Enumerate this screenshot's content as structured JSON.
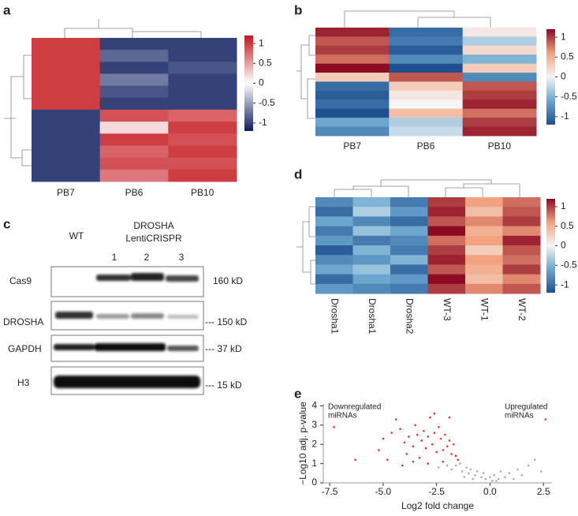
{
  "panels": [
    "a",
    "b",
    "c",
    "d",
    "e"
  ],
  "chart_data": [
    {
      "type": "heatmap",
      "columns": [
        "PB7",
        "PB6",
        "PB10"
      ],
      "values": [
        [
          1,
          -1,
          -1
        ],
        [
          1,
          -0.8,
          -1
        ],
        [
          1,
          -1,
          -0.9
        ],
        [
          1,
          -0.7,
          -1
        ],
        [
          1,
          -0.9,
          -1
        ],
        [
          1,
          -1,
          -1
        ],
        [
          -1,
          0.9,
          0.8
        ],
        [
          -1,
          0.2,
          1
        ],
        [
          -1,
          1,
          0.9
        ],
        [
          -1,
          0.8,
          1
        ],
        [
          -1,
          0.9,
          0.9
        ],
        [
          -1,
          0.7,
          1
        ]
      ],
      "colors": [
        "#0b1c5e",
        "#ffffff",
        "#c4161c"
      ],
      "clim": [
        -1.2,
        1.2
      ],
      "cticks": [
        1,
        0.5,
        0,
        -0.5,
        -1
      ]
    },
    {
      "type": "heatmap",
      "columns": [
        "PB7",
        "PB6",
        "PB10"
      ],
      "values": [
        [
          1.1,
          -1,
          0.1
        ],
        [
          0.9,
          -0.9,
          -0.3
        ],
        [
          1,
          -1.1,
          0.2
        ],
        [
          0.8,
          -0.8,
          -0.5
        ],
        [
          1.2,
          -1.2,
          0.3
        ],
        [
          0.3,
          0.9,
          -0.8
        ],
        [
          -1,
          0.3,
          0.9
        ],
        [
          -1.1,
          0.1,
          1
        ],
        [
          -1,
          0,
          1.1
        ],
        [
          -1.2,
          0.4,
          0.8
        ],
        [
          -0.6,
          -0.3,
          1
        ],
        [
          -0.8,
          -0.2,
          1.1
        ]
      ],
      "colors": [
        "#1f4f8f",
        "#6aa6ce",
        "#f5f5f5",
        "#f2a27f",
        "#8c0a22"
      ],
      "clim": [
        -1.2,
        1.2
      ],
      "cticks": [
        1,
        0.5,
        0,
        -0.5,
        -1
      ]
    },
    {
      "type": "heatmap",
      "columns": [
        "Drosha1",
        "Drosha1",
        "Drosha2",
        "WT-3",
        "WT-1",
        "WT-2"
      ],
      "values": [
        [
          -0.8,
          -0.5,
          -0.9,
          1.0,
          0.6,
          0.8
        ],
        [
          -1.0,
          -0.3,
          -0.7,
          1.1,
          0.4,
          0.9
        ],
        [
          -0.6,
          -0.8,
          -1.0,
          0.9,
          0.7,
          1.0
        ],
        [
          -0.9,
          -0.4,
          -0.6,
          1.2,
          0.5,
          0.7
        ],
        [
          -0.7,
          -0.9,
          -0.8,
          0.8,
          0.6,
          1.1
        ],
        [
          -1.1,
          -0.5,
          -0.9,
          1.0,
          0.3,
          0.9
        ],
        [
          -0.8,
          -0.7,
          -0.5,
          1.1,
          0.6,
          0.8
        ],
        [
          -0.6,
          -0.4,
          -1.0,
          0.9,
          0.5,
          1.0
        ],
        [
          -1.0,
          -0.6,
          -0.7,
          1.2,
          0.4,
          0.7
        ],
        [
          -0.7,
          -0.8,
          -0.9,
          1.0,
          0.7,
          0.9
        ]
      ],
      "colors": [
        "#1f4f8f",
        "#6aa6ce",
        "#f5f5f5",
        "#f2a27f",
        "#8c0a22"
      ],
      "clim": [
        -1.2,
        1.2
      ],
      "cticks": [
        1,
        0.5,
        0,
        -0.5,
        -1
      ]
    },
    {
      "type": "scatter",
      "x_label": "Log2 fold change",
      "y_label": "−Log10 adj. p-value",
      "annotations": [
        [
          "Downregulated",
          "miRNAs"
        ],
        [
          "Upregulated",
          "miRNAs"
        ]
      ],
      "xlim": [
        -7.8,
        2.9
      ],
      "ylim": [
        0,
        4.1
      ],
      "xticks": [
        -7.5,
        {
          "value": -5,
          "label": "-5.0"
        },
        -2.5,
        {
          "value": 0,
          "label": "0.0"
        },
        2.5
      ],
      "yticks": [
        0,
        1,
        2,
        3,
        4
      ],
      "series": [
        {
          "color": "#e8322c",
          "x": [
            -7.3,
            -4.6,
            -4.2,
            -4.0,
            -3.8,
            -3.6,
            -3.5,
            -3.4,
            -3.2,
            -3.1,
            -3.0,
            -2.9,
            -2.8,
            -2.7,
            -2.6,
            -2.5,
            -2.4,
            -2.3,
            -2.2,
            -2.1,
            -2.0,
            -1.9,
            -1.8,
            -1.7,
            -1.6,
            -5.2,
            -5.0,
            -4.8,
            -4.4,
            -3.9,
            -3.3,
            -2.6,
            -1.9,
            -1.5,
            -4.1,
            -3.6,
            2.6,
            -6.3,
            -2.9,
            -2.2
          ],
          "values": [
            2.9,
            2.6,
            2.8,
            2.1,
            2.4,
            1.9,
            3.0,
            2.5,
            2.2,
            2.7,
            1.8,
            2.4,
            3.4,
            2.0,
            2.6,
            1.6,
            2.9,
            2.3,
            1.7,
            2.5,
            1.9,
            2.2,
            1.5,
            2.0,
            1.4,
            1.7,
            2.3,
            1.2,
            3.3,
            1.5,
            1.3,
            3.6,
            3.4,
            1.2,
            0.9,
            1.1,
            3.3,
            1.2,
            1.0,
            1.1
          ]
        },
        {
          "color": "#aaaaaa",
          "x": [
            -2.4,
            -2.0,
            -1.8,
            -1.6,
            -1.4,
            -1.3,
            -1.1,
            -1.0,
            -0.9,
            -0.7,
            -0.6,
            -0.4,
            -0.3,
            -0.2,
            0.0,
            0.1,
            0.2,
            0.4,
            0.5,
            0.7,
            0.9,
            1.1,
            1.3,
            1.5,
            1.8,
            2.1,
            2.4,
            -0.8,
            0.3,
            -1.2
          ],
          "values": [
            0.8,
            0.9,
            0.7,
            0.9,
            1.0,
            0.6,
            0.8,
            0.5,
            0.7,
            0.4,
            0.6,
            0.3,
            0.5,
            0.2,
            0.3,
            0.1,
            0.4,
            0.2,
            0.6,
            0.3,
            0.5,
            0.2,
            0.7,
            0.4,
            0.9,
            1.2,
            0.6,
            0.2,
            0.1,
            0.3
          ]
        }
      ]
    }
  ],
  "blot": {
    "wt": "WT",
    "group": [
      "DROSHA",
      "LentiCRISPR"
    ],
    "lanes": [
      "1",
      "2",
      "3"
    ],
    "rows": [
      {
        "label": "Cas9",
        "size": "160 kD"
      },
      {
        "label": "DROSHA",
        "size": "--- 150 kD"
      },
      {
        "label": "GAPDH",
        "size": "--- 37 kD"
      },
      {
        "label": "H3",
        "size": "--- 15 kD"
      }
    ]
  }
}
